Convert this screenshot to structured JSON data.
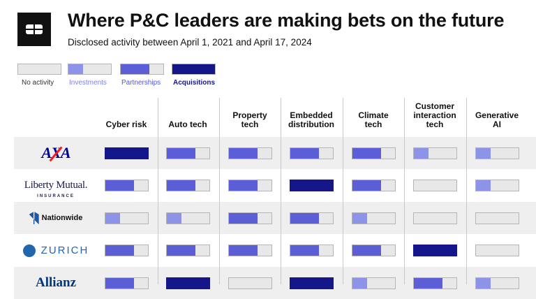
{
  "header": {
    "title": "Where P&C leaders are making bets on the future",
    "subtitle": "Disclosed activity between April 1, 2021 and April 17, 2024"
  },
  "legend": [
    "No activity",
    "Investments",
    "Partnerships",
    "Acquisitions"
  ],
  "columns": [
    [
      "Cyber risk"
    ],
    [
      "Auto tech"
    ],
    [
      "Property",
      "tech"
    ],
    [
      "Embedded",
      "distribution"
    ],
    [
      "Climate",
      "tech"
    ],
    [
      "Customer",
      "interaction",
      "tech"
    ],
    [
      "Generative",
      "AI"
    ]
  ],
  "rows": [
    {
      "company": [
        "AXA"
      ],
      "levels": [
        3,
        2,
        2,
        2,
        2,
        1,
        1
      ]
    },
    {
      "company": [
        "Liberty Mutual.",
        "INSURANCE"
      ],
      "levels": [
        2,
        2,
        2,
        3,
        2,
        0,
        1
      ]
    },
    {
      "company": [
        "Nationwide"
      ],
      "levels": [
        1,
        1,
        2,
        2,
        1,
        0,
        0
      ]
    },
    {
      "company": [
        "ZURICH"
      ],
      "levels": [
        2,
        2,
        2,
        2,
        2,
        3,
        0
      ]
    },
    {
      "company": [
        "Allianz"
      ],
      "levels": [
        2,
        3,
        0,
        3,
        1,
        2,
        1
      ]
    }
  ]
}
